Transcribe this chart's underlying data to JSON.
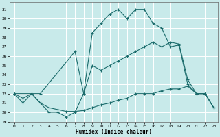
{
  "xlabel": "Humidex (Indice chaleur)",
  "background_color": "#c8eaea",
  "grid_color": "#ffffff",
  "line_color": "#1a6b6b",
  "xlim": [
    -0.5,
    23.5
  ],
  "ylim": [
    19,
    31.8
  ],
  "yticks": [
    19,
    20,
    21,
    22,
    23,
    24,
    25,
    26,
    27,
    28,
    29,
    30,
    31
  ],
  "xticks": [
    0,
    1,
    2,
    3,
    4,
    5,
    6,
    7,
    8,
    9,
    10,
    11,
    12,
    13,
    14,
    15,
    16,
    17,
    18,
    19,
    20,
    21,
    22,
    23
  ],
  "line1_x": [
    0,
    1,
    2,
    3,
    4,
    5,
    6,
    7,
    8,
    9,
    10,
    11,
    12,
    13,
    14,
    15,
    16,
    17,
    18,
    19,
    20,
    21,
    22,
    23
  ],
  "line1_y": [
    22,
    21,
    22,
    21,
    20,
    20,
    19.5,
    20,
    22,
    28.5,
    29.5,
    30.5,
    31,
    30,
    31,
    31,
    29.5,
    29,
    27,
    27.2,
    23,
    22,
    22,
    20.5
  ],
  "line2_x": [
    0,
    3,
    7,
    8,
    9,
    10,
    11,
    12,
    13,
    14,
    15,
    16,
    17,
    18,
    19,
    20,
    21,
    22,
    23
  ],
  "line2_y": [
    22,
    22,
    26.5,
    22,
    25,
    24.5,
    25,
    25.5,
    26,
    26.5,
    27,
    27.5,
    27,
    27.5,
    27.3,
    23.5,
    22,
    22,
    20.5
  ],
  "line3_x": [
    0,
    1,
    2,
    3,
    4,
    5,
    6,
    7,
    8,
    9,
    10,
    11,
    12,
    13,
    14,
    15,
    16,
    17,
    18,
    19,
    20,
    21,
    22,
    23
  ],
  "line3_y": [
    22,
    21.5,
    22,
    21,
    20.5,
    20.3,
    20.1,
    20.1,
    20.2,
    20.5,
    20.8,
    21,
    21.3,
    21.5,
    22,
    22,
    22,
    22.3,
    22.5,
    22.5,
    22.8,
    22,
    22,
    20.5
  ]
}
